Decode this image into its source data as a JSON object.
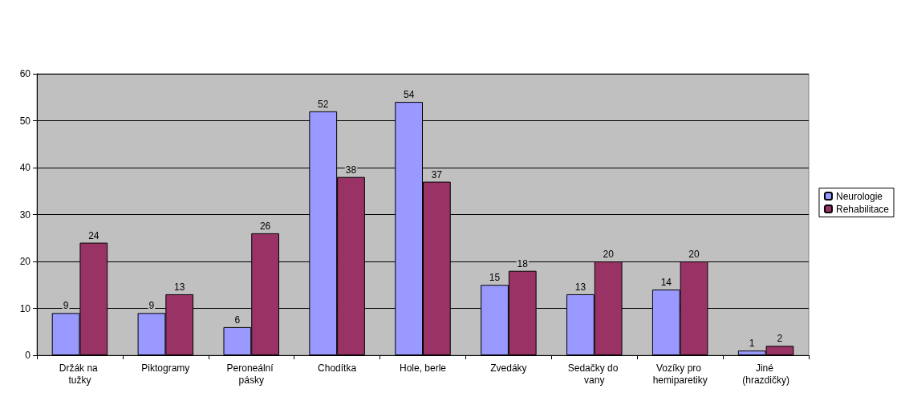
{
  "chart_data": {
    "type": "bar",
    "categories": [
      "Držák na tužky",
      "Piktogramy",
      "Peroneální pásky",
      "Chodítka",
      "Hole, berle",
      "Zvedáky",
      "Sedačky do vany",
      "Vozíky pro hemiparetiky",
      "Jiné (hrazdičky)"
    ],
    "series": [
      {
        "name": "Neurologie",
        "color": "#9999ff",
        "values": [
          9,
          9,
          6,
          52,
          54,
          15,
          13,
          14,
          1
        ]
      },
      {
        "name": "Rehabilitace",
        "color": "#993366",
        "values": [
          24,
          13,
          26,
          38,
          37,
          18,
          20,
          20,
          2
        ]
      }
    ],
    "ylim": [
      0,
      60
    ],
    "yticks": [
      0,
      10,
      20,
      30,
      40,
      50,
      60
    ],
    "grid": "y",
    "legend": "right",
    "data_labels": true
  }
}
